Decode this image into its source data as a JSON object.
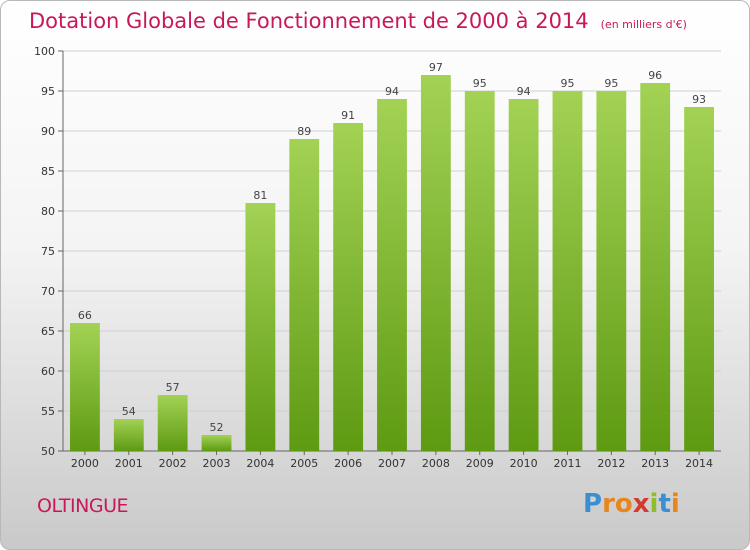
{
  "header": {
    "title": "Dotation Globale de Fonctionnement de 2000 à 2014",
    "subtitle": "(en milliers d'€)"
  },
  "footer": {
    "city": "OLTINGUE",
    "logo": [
      "P",
      "r",
      "o",
      "x",
      "i",
      "t",
      "i"
    ]
  },
  "colors": {
    "bar_top": "#a3d255",
    "bar_bottom": "#5e9a12",
    "title": "#c8185a"
  },
  "chart_data": {
    "type": "bar",
    "categories": [
      "2000",
      "2001",
      "2002",
      "2003",
      "2004",
      "2005",
      "2006",
      "2007",
      "2008",
      "2009",
      "2010",
      "2011",
      "2012",
      "2013",
      "2014"
    ],
    "values": [
      66,
      54,
      57,
      52,
      81,
      89,
      91,
      94,
      97,
      95,
      94,
      95,
      95,
      96,
      93
    ],
    "ylim": [
      50,
      100
    ],
    "yticks": [
      50,
      55,
      60,
      65,
      70,
      75,
      80,
      85,
      90,
      95,
      100
    ],
    "grid": true,
    "legend": "none"
  }
}
